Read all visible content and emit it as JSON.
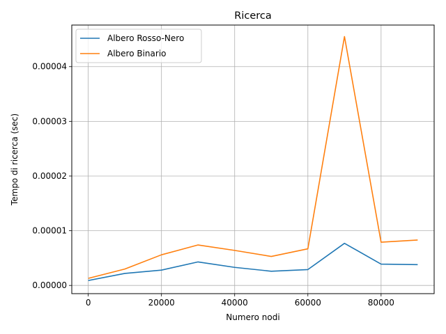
{
  "chart_data": {
    "type": "line",
    "title": "Ricerca",
    "xlabel": "Numero nodi",
    "ylabel": "Tempo di ricerca (sec)",
    "x": [
      0,
      10000,
      20000,
      30000,
      40000,
      50000,
      60000,
      70000,
      80000,
      90000
    ],
    "xlim": [
      -4500,
      94500
    ],
    "ylim": [
      -1.5e-06,
      4.76e-05
    ],
    "xticks": [
      0,
      20000,
      40000,
      60000,
      80000
    ],
    "xtick_labels": [
      "0",
      "20000",
      "40000",
      "60000",
      "80000"
    ],
    "yticks": [
      0,
      1e-05,
      2e-05,
      3e-05,
      4e-05
    ],
    "ytick_labels": [
      "0.00000",
      "0.00001",
      "0.00002",
      "0.00003",
      "0.00004"
    ],
    "grid": true,
    "legend_position": "top-left",
    "series": [
      {
        "name": "Albero Rosso-Nero",
        "color": "#1f77b4",
        "values": [
          9e-07,
          2.2e-06,
          2.8e-06,
          4.3e-06,
          3.3e-06,
          2.6e-06,
          2.9e-06,
          7.7e-06,
          3.9e-06,
          3.8e-06
        ]
      },
      {
        "name": "Albero Binario",
        "color": "#ff7f0e",
        "values": [
          1.3e-06,
          3e-06,
          5.6e-06,
          7.4e-06,
          6.4e-06,
          5.3e-06,
          6.7e-06,
          4.55e-05,
          7.9e-06,
          8.3e-06
        ]
      }
    ]
  }
}
